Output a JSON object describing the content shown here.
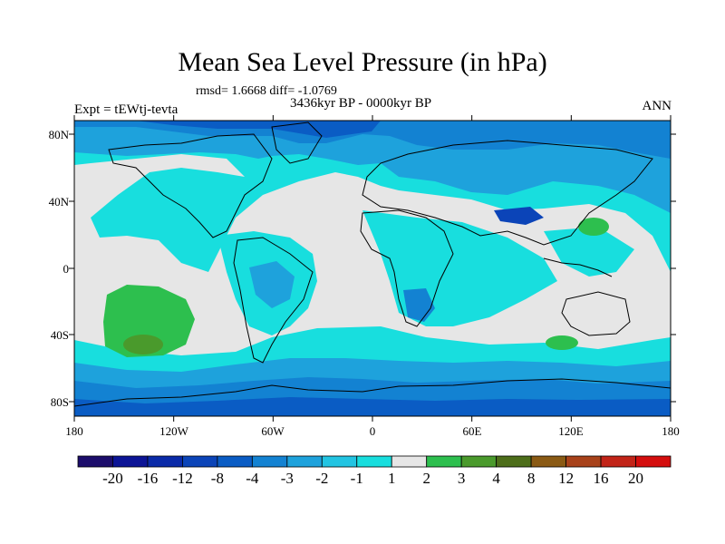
{
  "header": {
    "title": "Mean Sea Level Pressure (in hPa)",
    "stats": "rmsd= 1.6668 diff= -1.0769",
    "period": "3436kyr BP - 0000kyr BP",
    "experiment": "Expt = tEWtj-tevta",
    "season": "ANN"
  },
  "axes": {
    "lat_labels": [
      "80N",
      "40N",
      "0",
      "40S",
      "80S"
    ],
    "lon_labels": [
      "180",
      "120W",
      "60W",
      "0",
      "60E",
      "120E",
      "180"
    ]
  },
  "colorbar": {
    "labels": [
      "-20",
      "-16",
      "-12",
      "-8",
      "-4",
      "-3",
      "-2",
      "-1",
      "1",
      "2",
      "3",
      "4",
      "8",
      "12",
      "16",
      "20"
    ],
    "colors": [
      "#1c0d6b",
      "#0c1496",
      "#0a2aa8",
      "#0b44b8",
      "#0a5cc4",
      "#1382d2",
      "#1ea2dc",
      "#22c4e2",
      "#18dede",
      "#e6e6e6",
      "#2dbf4e",
      "#4a9a2c",
      "#4d6e1a",
      "#8a5a14",
      "#a8421a",
      "#c22418",
      "#d40e0e"
    ]
  },
  "map": {
    "background": "#e6e6e6",
    "palette": {
      "neutral": "#e6e6e6",
      "minus1": "#18dede",
      "minus2": "#22c4e2",
      "minus3": "#1ea2dc",
      "minus4": "#1382d2",
      "minus8": "#0a5cc4",
      "minus12": "#0b44b8",
      "plus1": "#2dbf4e",
      "plus2": "#4a9a2c",
      "coast": "#000000"
    }
  }
}
